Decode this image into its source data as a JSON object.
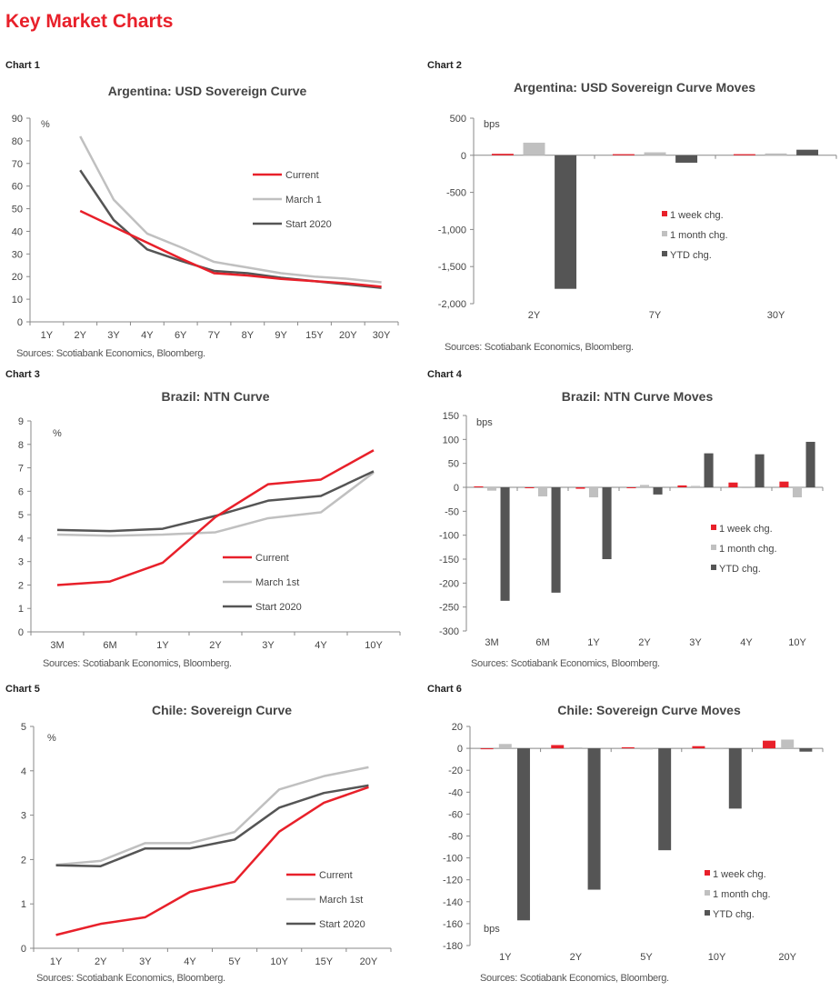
{
  "page_title": "Key Market Charts",
  "colors": {
    "current": "#e8202a",
    "march": "#c0c0c0",
    "start": "#555555"
  },
  "chart_data": [
    {
      "label": "Chart 1",
      "type": "line",
      "title": "Argentina:  USD Sovereign Curve",
      "ylabel": "%",
      "ylim": [
        0,
        90
      ],
      "yticks": [
        0,
        10,
        20,
        30,
        40,
        50,
        60,
        70,
        80,
        90
      ],
      "categories": [
        "1Y",
        "2Y",
        "3Y",
        "4Y",
        "6Y",
        "7Y",
        "8Y",
        "9Y",
        "15Y",
        "20Y",
        "30Y"
      ],
      "series": [
        {
          "name": "Current",
          "values": [
            null,
            49,
            42,
            35,
            28,
            21.5,
            20.5,
            19,
            18,
            17,
            15.5
          ]
        },
        {
          "name": "March 1",
          "values": [
            null,
            82,
            54,
            39,
            33,
            26.5,
            24,
            21.5,
            20,
            19,
            17.5
          ]
        },
        {
          "name": "Start 2020",
          "values": [
            null,
            67,
            45,
            32,
            27,
            22.5,
            21.5,
            19.5,
            18,
            16.5,
            15
          ]
        }
      ],
      "source": "Sources: Scotiabank Economics, Bloomberg."
    },
    {
      "label": "Chart 2",
      "type": "bar",
      "title": "Argentina:  USD Sovereign Curve Moves",
      "ylabel": "bps",
      "ylim": [
        -2000,
        500
      ],
      "yticks": [
        500,
        0,
        -500,
        -1000,
        -1500,
        -2000
      ],
      "ytick_labels": [
        "500",
        "0",
        "-500",
        "-1,000",
        "-1,500",
        "-2,000"
      ],
      "categories": [
        "2Y",
        "7Y",
        "30Y"
      ],
      "series": [
        {
          "name": "1 week chg.",
          "values": [
            20,
            15,
            15
          ]
        },
        {
          "name": "1 month chg.",
          "values": [
            170,
            40,
            25
          ]
        },
        {
          "name": "YTD chg.",
          "values": [
            -1800,
            -100,
            75
          ]
        }
      ],
      "source": "Sources: Scotiabank Economics, Bloomberg."
    },
    {
      "label": "Chart 3",
      "type": "line",
      "title": "Brazil: NTN Curve",
      "ylabel": "%",
      "ylim": [
        0,
        9
      ],
      "yticks": [
        0,
        1,
        2,
        3,
        4,
        5,
        6,
        7,
        8,
        9
      ],
      "categories": [
        "3M",
        "6M",
        "1Y",
        "2Y",
        "3Y",
        "4Y",
        "10Y"
      ],
      "series": [
        {
          "name": "Current",
          "values": [
            2.0,
            2.15,
            2.95,
            4.9,
            6.3,
            6.5,
            7.75
          ]
        },
        {
          "name": "March 1st",
          "values": [
            4.15,
            4.1,
            4.15,
            4.25,
            4.85,
            5.1,
            6.8
          ]
        },
        {
          "name": "Start 2020",
          "values": [
            4.35,
            4.3,
            4.4,
            4.95,
            5.6,
            5.8,
            6.85
          ]
        }
      ],
      "source": "Sources: Scotiabank Economics, Bloomberg."
    },
    {
      "label": "Chart 4",
      "type": "bar",
      "title": "Brazil: NTN Curve Moves",
      "ylabel": "bps",
      "ylim": [
        -300,
        150
      ],
      "yticks": [
        150,
        100,
        50,
        0,
        -50,
        -100,
        -150,
        -200,
        -250,
        -300
      ],
      "categories": [
        "3M",
        "6M",
        "1Y",
        "2Y",
        "3Y",
        "4Y",
        "10Y"
      ],
      "series": [
        {
          "name": "1 week chg.",
          "values": [
            2,
            -1,
            -3,
            -1,
            4,
            10,
            12
          ]
        },
        {
          "name": "1 month chg.",
          "values": [
            -7,
            -19,
            -21,
            5,
            3,
            -2,
            -21
          ]
        },
        {
          "name": "YTD chg.",
          "values": [
            -237,
            -220,
            -150,
            -15,
            71,
            69,
            95
          ]
        }
      ],
      "source": "Sources: Scotiabank Economics, Bloomberg."
    },
    {
      "label": "Chart 5",
      "type": "line",
      "title": "Chile:  Sovereign Curve",
      "ylabel": "%",
      "ylim": [
        0,
        5
      ],
      "yticks": [
        0,
        1,
        2,
        3,
        4,
        5
      ],
      "categories": [
        "1Y",
        "2Y",
        "3Y",
        "4Y",
        "5Y",
        "10Y",
        "15Y",
        "20Y"
      ],
      "series": [
        {
          "name": "Current",
          "values": [
            0.3,
            0.55,
            0.7,
            1.27,
            1.5,
            2.63,
            3.28,
            3.63
          ]
        },
        {
          "name": "March 1st",
          "values": [
            1.88,
            1.97,
            2.37,
            2.37,
            2.62,
            3.58,
            3.88,
            4.08
          ]
        },
        {
          "name": "Start 2020",
          "values": [
            1.87,
            1.85,
            2.25,
            2.25,
            2.45,
            3.17,
            3.5,
            3.67
          ]
        }
      ],
      "source": "Sources: Scotiabank Economics, Bloomberg."
    },
    {
      "label": "Chart 6",
      "type": "bar",
      "title": "Chile:  Sovereign Curve Moves",
      "ylabel": "bps",
      "ylim": [
        -180,
        20
      ],
      "yticks": [
        20,
        0,
        -20,
        -40,
        -60,
        -80,
        -100,
        -120,
        -140,
        -160,
        -180
      ],
      "categories": [
        "1Y",
        "2Y",
        "5Y",
        "10Y",
        "20Y"
      ],
      "series": [
        {
          "name": "1 week chg.",
          "values": [
            0,
            3,
            1,
            2,
            7
          ]
        },
        {
          "name": "1 month chg.",
          "values": [
            4,
            1,
            -1,
            0,
            8
          ]
        },
        {
          "name": "YTD chg.",
          "values": [
            -157,
            -129,
            -93,
            -55,
            -3
          ]
        }
      ],
      "source": "Sources: Scotiabank Economics, Bloomberg."
    }
  ]
}
